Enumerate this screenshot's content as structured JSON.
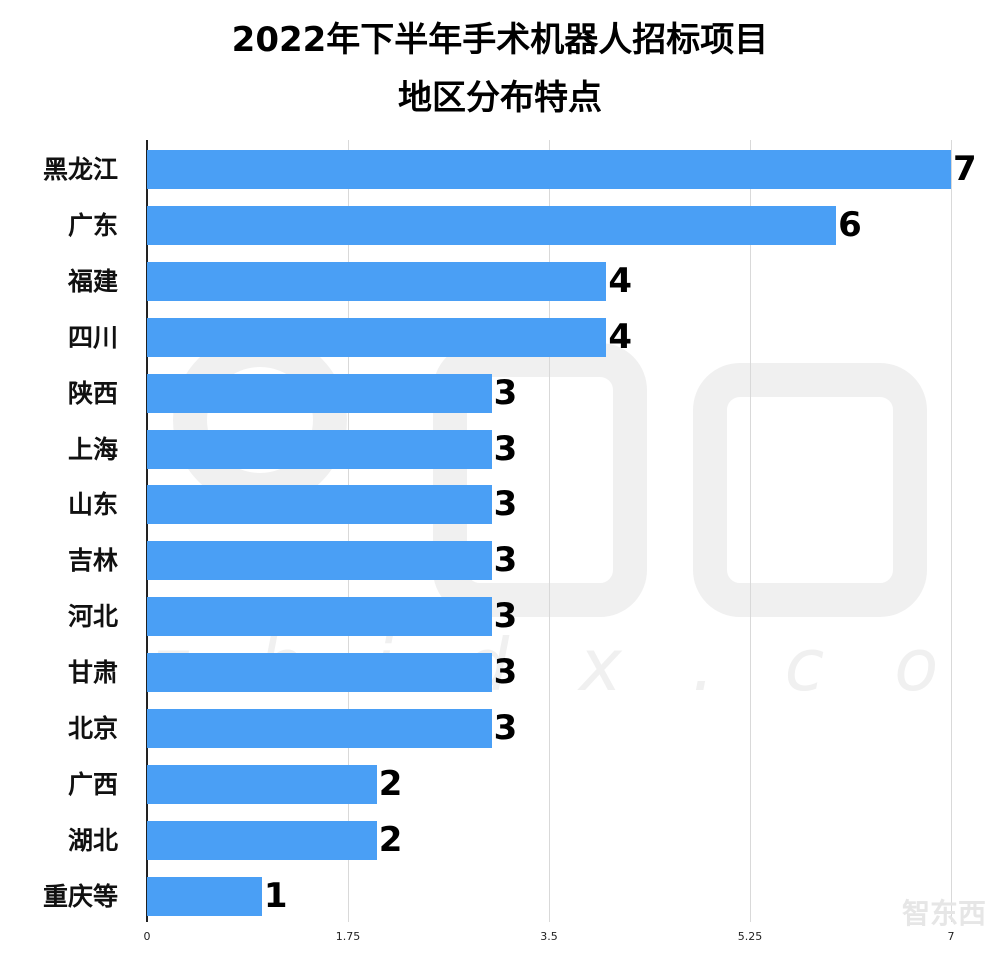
{
  "chart_data": {
    "type": "bar",
    "orientation": "horizontal",
    "title": "2022年下半年手术机器人招标项目",
    "subtitle": "地区分布特点",
    "categories": [
      "黑龙江",
      "广东",
      "福建",
      "四川",
      "陕西",
      "上海",
      "山东",
      "吉林",
      "河北",
      "甘肃",
      "北京",
      "广西",
      "湖北",
      "重庆等"
    ],
    "values": [
      7,
      6,
      4,
      4,
      3,
      3,
      3,
      3,
      3,
      3,
      3,
      2,
      2,
      1
    ],
    "xlabel": "",
    "ylabel": "",
    "xlim": [
      0,
      7
    ],
    "xticks": [
      "0",
      "1.75",
      "3.5",
      "5.25",
      "7"
    ],
    "grid": true,
    "data_labels": true,
    "bar_color": "#4a9ff5"
  },
  "header": {
    "title_line1": "2022年下半年手术机器人招标项目",
    "title_line2": "地区分布特点"
  },
  "watermark": {
    "text": "zhidx.com",
    "logo": "智东西"
  }
}
